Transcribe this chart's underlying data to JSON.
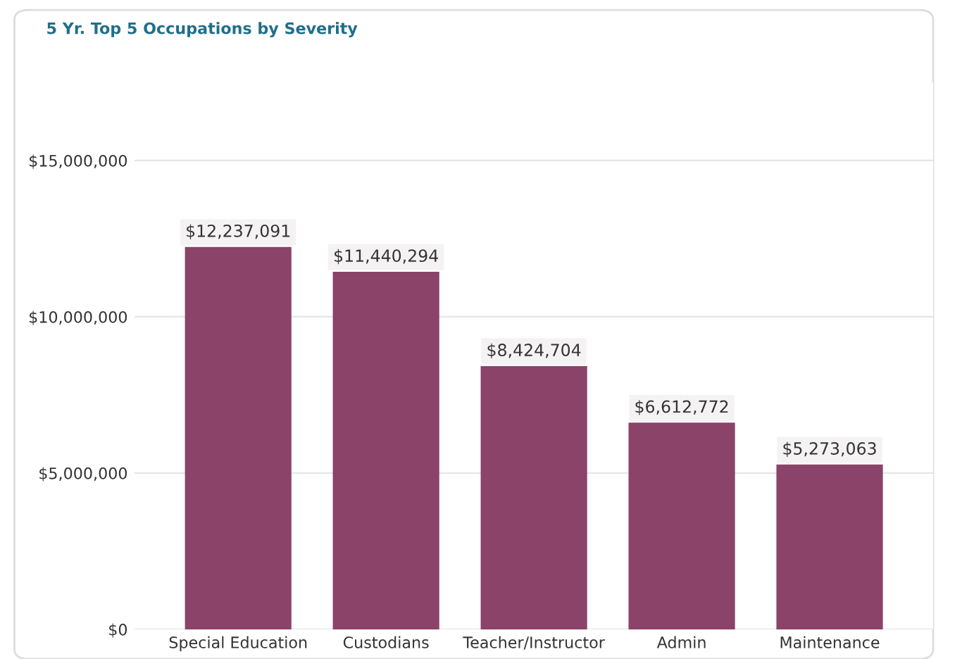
{
  "chart_data": {
    "type": "bar",
    "title": "5 Yr. Top 5 Occupations by Severity",
    "categories": [
      "Special Education",
      "Custodians",
      "Teacher/Instructor",
      "Admin",
      "Maintenance"
    ],
    "values": [
      12237091,
      11440294,
      8424704,
      6612772,
      5273063
    ],
    "value_labels": [
      "$12,237,091",
      "$11,440,294",
      "$8,424,704",
      "$6,612,772",
      "$5,273,063"
    ],
    "color": "#8b4369",
    "ylim": [
      0,
      17500000
    ],
    "yticks": [
      {
        "value": 0,
        "label": "$0"
      },
      {
        "value": 5000000,
        "label": "$5,000,000"
      },
      {
        "value": 10000000,
        "label": "$10,000,000"
      },
      {
        "value": 15000000,
        "label": "$15,000,000"
      }
    ],
    "grid": "y"
  }
}
